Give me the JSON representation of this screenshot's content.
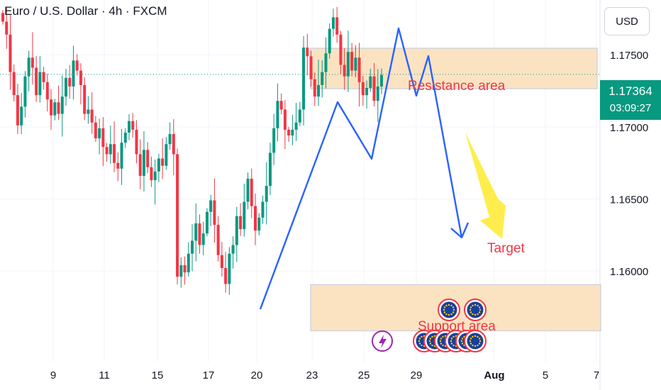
{
  "header": {
    "title": "Euro / U.S. Dollar · 4h · FXCM",
    "currency_label": "USD"
  },
  "price_tag": {
    "price": "1.17364",
    "countdown": "03:09:27"
  },
  "chart_data": {
    "type": "candlestick",
    "title": "Euro / U.S. Dollar · 4h · FXCM",
    "y_ticks": [
      "1.17500",
      "1.17000",
      "1.16500",
      "1.16000"
    ],
    "y_tick_values": [
      1.175,
      1.17,
      1.165,
      1.16
    ],
    "ylim": [
      1.1542,
      1.1788
    ],
    "x_ticks": [
      "9",
      "11",
      "15",
      "17",
      "20",
      "23",
      "25",
      "29",
      "Aug",
      "5",
      "7"
    ],
    "current_price": 1.17364,
    "annotations": {
      "resistance_label": "Resistance area",
      "support_label": "Support area",
      "target_label": "Target",
      "resistance_zone": [
        1.17265,
        1.17545
      ],
      "support_zone": [
        1.15585,
        1.15905
      ]
    },
    "colors": {
      "up": "#089981",
      "down": "#f23645",
      "zone": "#fbe3c2",
      "projection": "#2962ff",
      "arrow": "#ffeb3b",
      "label": "#f23645",
      "current_line": "#089981"
    },
    "candle_closes": [
      1.1773,
      1.1764,
      1.1738,
      1.1722,
      1.1701,
      1.1714,
      1.1735,
      1.1748,
      1.1741,
      1.1722,
      1.1738,
      1.1731,
      1.1719,
      1.1708,
      1.1717,
      1.1709,
      1.1721,
      1.1734,
      1.1728,
      1.1746,
      1.1739,
      1.1729,
      1.1709,
      1.1712,
      1.1703,
      1.1692,
      1.1699,
      1.1686,
      1.1681,
      1.1688,
      1.1675,
      1.1671,
      1.1689,
      1.1696,
      1.1704,
      1.1698,
      1.1681,
      1.1666,
      1.1684,
      1.1672,
      1.1663,
      1.1669,
      1.1678,
      1.1673,
      1.1688,
      1.1695,
      1.1681,
      1.1596,
      1.1604,
      1.1599,
      1.1612,
      1.1621,
      1.1633,
      1.1618,
      1.1626,
      1.1641,
      1.1649,
      1.1632,
      1.1611,
      1.1602,
      1.1591,
      1.1612,
      1.1618,
      1.1638,
      1.1629,
      1.1648,
      1.1664,
      1.1645,
      1.1628,
      1.1637,
      1.1648,
      1.1659,
      1.1682,
      1.1699,
      1.1718,
      1.1712,
      1.1698,
      1.1694,
      1.1698,
      1.1703,
      1.1712,
      1.1755,
      1.1749,
      1.1733,
      1.1721,
      1.1729,
      1.1738,
      1.1751,
      1.1768,
      1.1776,
      1.1764,
      1.1743,
      1.1735,
      1.1752,
      1.1739,
      1.1748,
      1.1731,
      1.1722,
      1.1727,
      1.1735,
      1.1718,
      1.1728,
      1.1736
    ]
  }
}
